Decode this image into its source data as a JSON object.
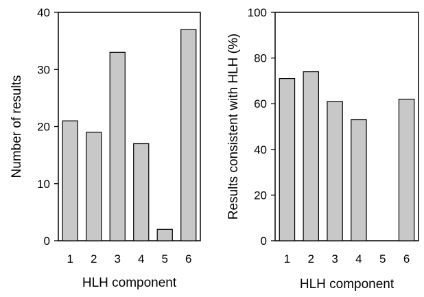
{
  "chart_data": [
    {
      "type": "bar",
      "categories": [
        "1",
        "2",
        "3",
        "4",
        "5",
        "6"
      ],
      "values": [
        21,
        19,
        33,
        17,
        2,
        37
      ],
      "title": "",
      "xlabel": "HLH component",
      "ylabel": "Number of results",
      "ylim": [
        0,
        40
      ],
      "yticks": [
        "0",
        "10",
        "20",
        "30",
        "40"
      ],
      "grid": false,
      "bar_color": "#c8c8c8",
      "box": "closed"
    },
    {
      "type": "bar",
      "categories": [
        "1",
        "2",
        "3",
        "4",
        "5",
        "6"
      ],
      "values": [
        71,
        74,
        61,
        53,
        0,
        62
      ],
      "title": "",
      "xlabel": "HLH component",
      "ylabel": "Results consistent with HLH (%)",
      "ylim": [
        0,
        100
      ],
      "yticks": [
        "0",
        "20",
        "40",
        "60",
        "80",
        "100"
      ],
      "grid": false,
      "bar_color": "#c8c8c8",
      "box": "closed"
    }
  ]
}
